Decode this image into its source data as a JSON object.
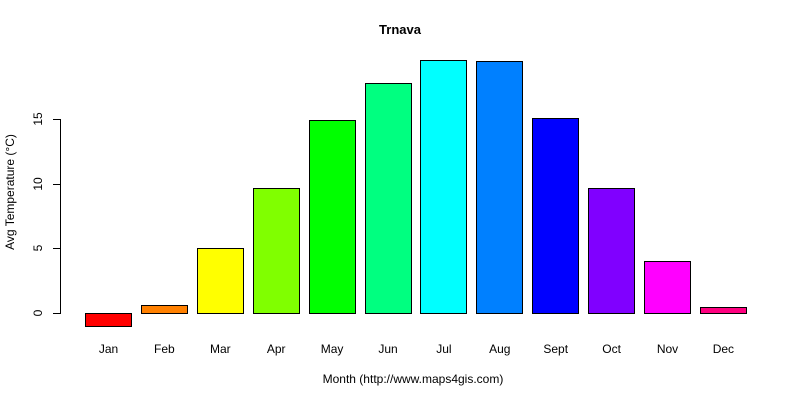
{
  "chart_data": {
    "type": "bar",
    "title": "Trnava",
    "xlabel": "Month (http://www.maps4gis.com)",
    "ylabel": "Avg Temperature (°C)",
    "categories": [
      "Jan",
      "Feb",
      "Mar",
      "Apr",
      "May",
      "Jun",
      "Jul",
      "Aug",
      "Sept",
      "Oct",
      "Nov",
      "Dec"
    ],
    "values": [
      -1.0,
      0.6,
      5.0,
      9.7,
      14.9,
      17.8,
      19.6,
      19.5,
      15.1,
      9.7,
      4.0,
      0.5
    ],
    "colors": [
      "#FF0000",
      "#FF8000",
      "#FFFF00",
      "#80FF00",
      "#00FF00",
      "#00FF80",
      "#00FFFF",
      "#0080FF",
      "#0000FF",
      "#8000FF",
      "#FF00FF",
      "#FF0080"
    ],
    "yticks": [
      0,
      5,
      10,
      15
    ],
    "ylim": [
      -1,
      20
    ],
    "grid": false,
    "legend": "none"
  }
}
